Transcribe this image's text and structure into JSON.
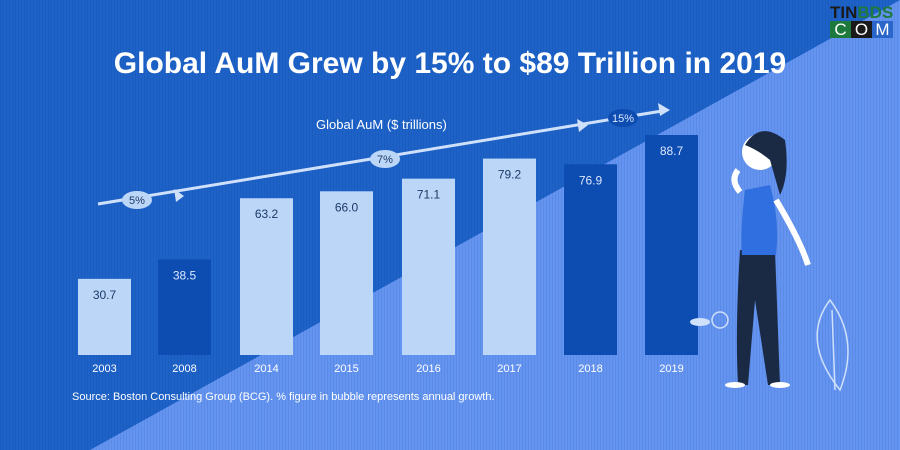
{
  "title": "Global AuM Grew by 15% to $89 Trillion in 2019",
  "source": "Source: Boston Consulting Group (BCG). % figure in bubble represents annual growth.",
  "logo": {
    "line1_a": "TIN",
    "line1_b": "BDS",
    "line2": "COM"
  },
  "colors": {
    "background_dark": "#1d62c8",
    "background_light": "#6394f2",
    "bar_light": "#bcd6f8",
    "bar_dark": "#0d4cb0"
  },
  "chart_data": {
    "type": "bar",
    "title": "Global AuM ($ trillions)",
    "categories": [
      "2003",
      "2008",
      "2014",
      "2015",
      "2016",
      "2017",
      "2018",
      "2019"
    ],
    "values": [
      30.7,
      38.5,
      63.2,
      66.0,
      71.1,
      79.2,
      76.9,
      88.7
    ],
    "value_labels": [
      "30.7",
      "38.5",
      "63.2",
      "66.0",
      "71.1",
      "79.2",
      "76.9",
      "88.7"
    ],
    "highlighted": [
      false,
      true,
      false,
      false,
      false,
      false,
      true,
      true
    ],
    "growth_bubbles": [
      "5%",
      "7%",
      "15%"
    ],
    "ylim": [
      0,
      90
    ],
    "grid": false,
    "legend": "none"
  }
}
